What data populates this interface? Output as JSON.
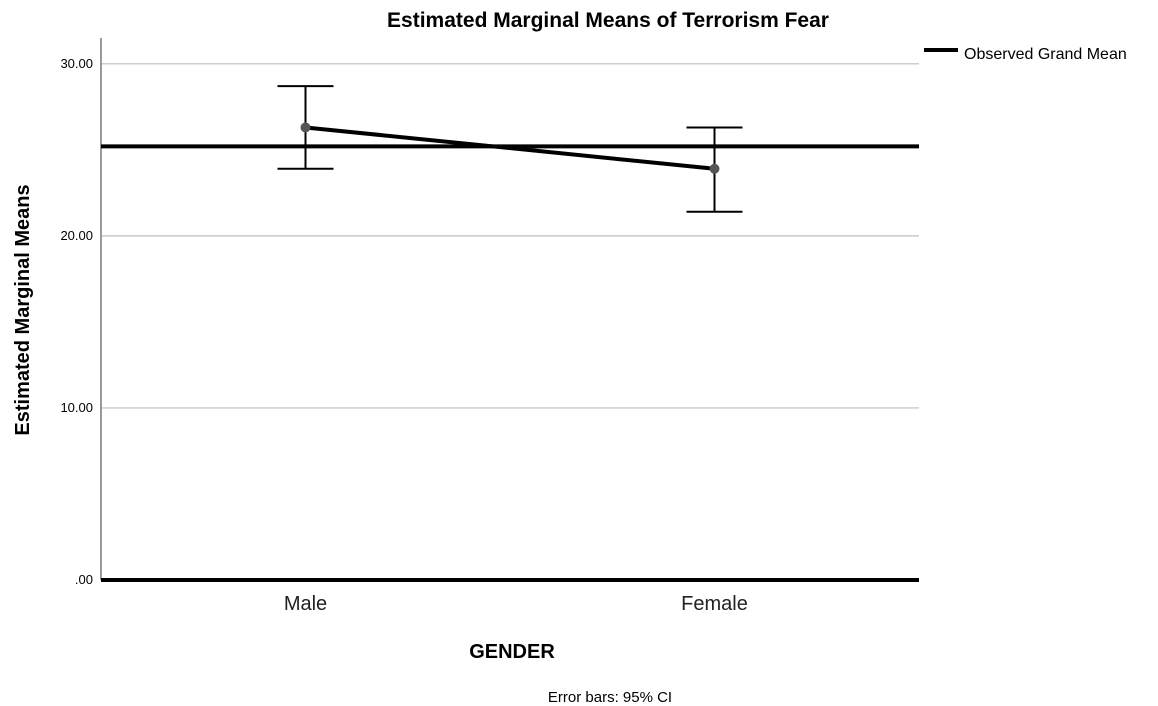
{
  "chart_data": {
    "type": "line",
    "title": "Estimated Marginal Means of Terrorism Fear",
    "xlabel": "GENDER",
    "ylabel": "Estimated Marginal Means",
    "categories": [
      "Male",
      "Female"
    ],
    "series": [
      {
        "values": [
          26.3,
          23.9
        ],
        "ci_lower": [
          23.9,
          21.4
        ],
        "ci_upper": [
          28.7,
          26.3
        ]
      }
    ],
    "reference_line": {
      "name": "Observed Grand Mean",
      "value": 25.2
    },
    "ylim": [
      0,
      31.5
    ],
    "yticks": [
      0,
      10,
      20,
      30
    ],
    "ytick_labels": [
      ".00",
      "10.00",
      "20.00",
      "30.00"
    ],
    "grid": true,
    "legend_position": "top-right",
    "footnote": "Error bars: 95% CI",
    "colors": {
      "line": "#000000",
      "marker": "#555555",
      "grid": "#bdbdbd",
      "axis": "#9a9a9a"
    }
  }
}
